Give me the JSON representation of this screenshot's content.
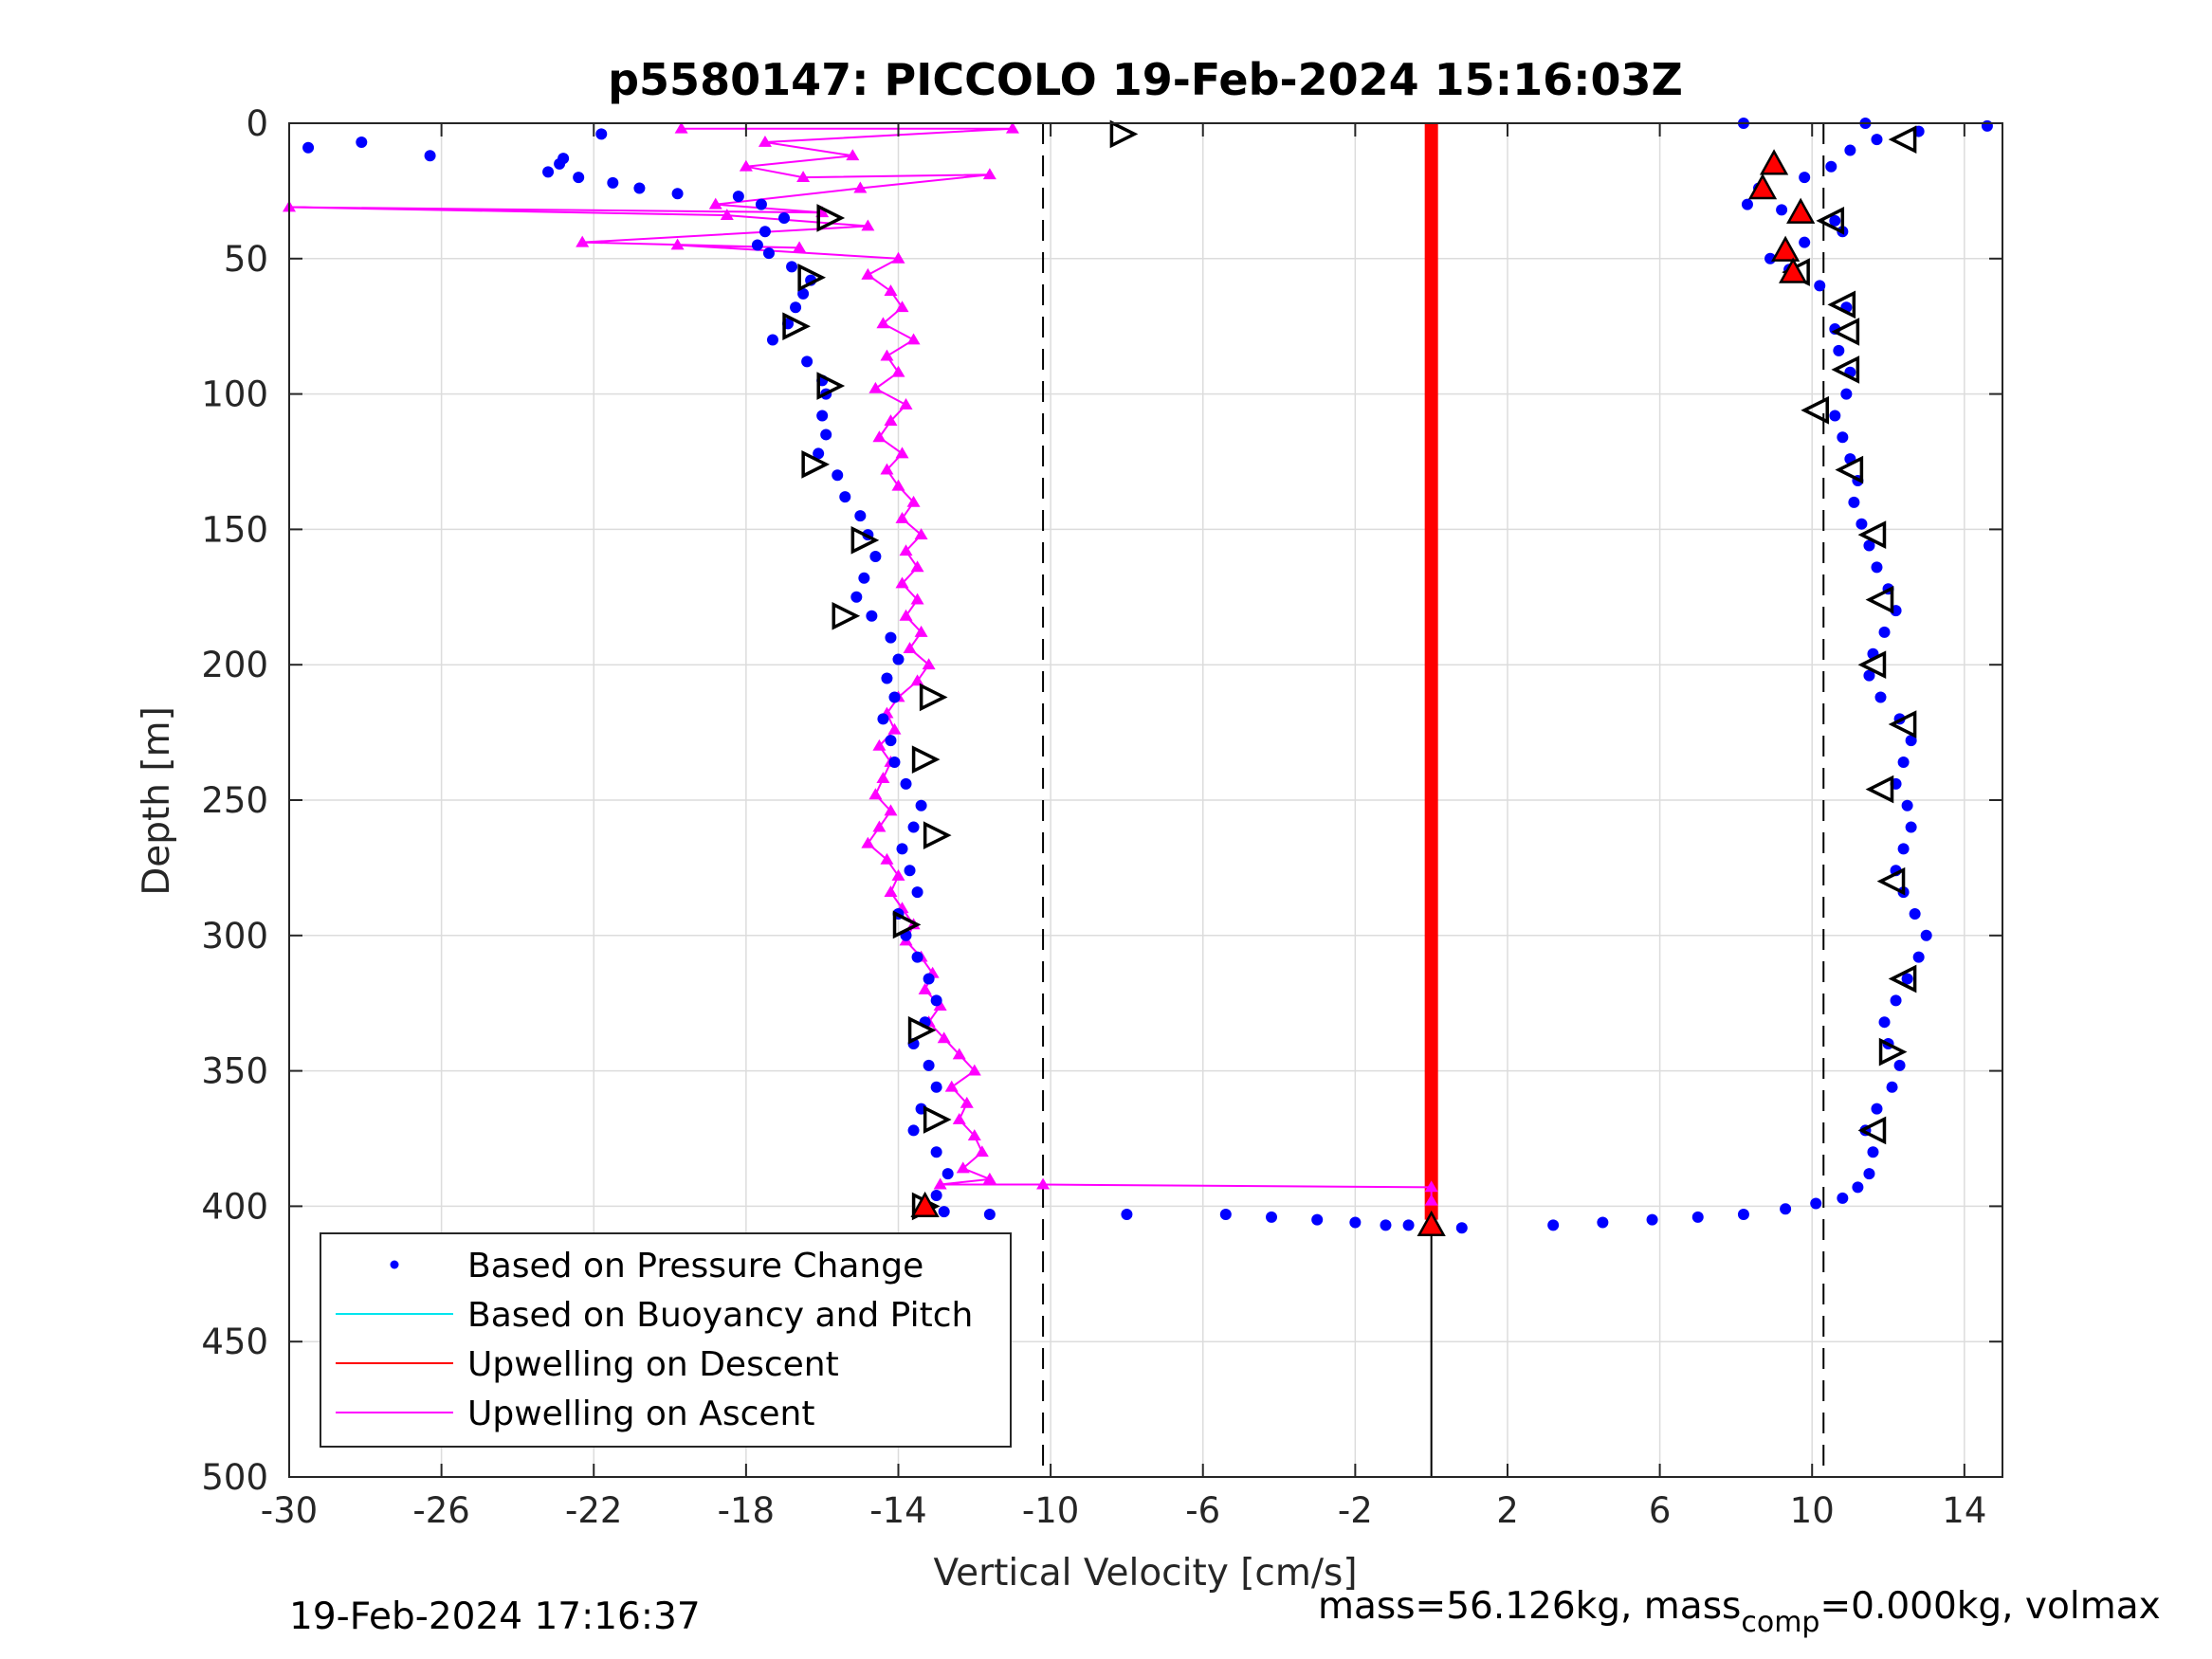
{
  "chart_data": {
    "type": "scatter",
    "title": "p5580147: PICCOLO 19-Feb-2024 15:16:03Z",
    "xlabel": "Vertical Velocity [cm/s]",
    "ylabel": "Depth [m]",
    "xlim": [
      -30,
      15
    ],
    "ylim": [
      0,
      500
    ],
    "y_reversed": true,
    "x_ticks": [
      -30,
      -26,
      -22,
      -18,
      -14,
      -10,
      -6,
      -2,
      2,
      6,
      10,
      14
    ],
    "y_ticks": [
      0,
      50,
      100,
      150,
      200,
      250,
      300,
      350,
      400,
      450,
      500
    ],
    "grid": true,
    "legend_position": "bottom-left",
    "legend": [
      {
        "label": "Based on Pressure Change",
        "color": "#0000ff",
        "marker": "dot"
      },
      {
        "label": "Based on Buoyancy and Pitch",
        "color": "#00e5ee",
        "marker": "line"
      },
      {
        "label": "Upwelling on Descent",
        "color": "#ff0000",
        "marker": "line"
      },
      {
        "label": "Upwelling on Ascent",
        "color": "#ff00ff",
        "marker": "line"
      }
    ],
    "reference_lines": {
      "dashed_x": [
        -10.2,
        10.3
      ],
      "solid_vertical": {
        "x": 0,
        "y_from": 405,
        "y_to": 500
      }
    },
    "series": {
      "pressure_change_descent": [
        [
          -29.5,
          9
        ],
        [
          -28.1,
          7
        ],
        [
          -26.3,
          12
        ],
        [
          -21.8,
          4
        ],
        [
          -22.8,
          13
        ],
        [
          -22.9,
          15
        ],
        [
          -23.2,
          18
        ],
        [
          -22.4,
          20
        ],
        [
          -21.5,
          22
        ],
        [
          -20.8,
          24
        ],
        [
          -19.8,
          26
        ],
        [
          -18.2,
          27
        ],
        [
          -17.6,
          30
        ],
        [
          -17.0,
          35
        ],
        [
          -17.5,
          40
        ],
        [
          -17.7,
          45
        ],
        [
          -17.4,
          48
        ],
        [
          -16.8,
          53
        ],
        [
          -16.3,
          58
        ],
        [
          -16.5,
          63
        ],
        [
          -16.7,
          68
        ],
        [
          -16.9,
          74
        ],
        [
          -17.3,
          80
        ],
        [
          -16.4,
          88
        ],
        [
          -16.0,
          95
        ],
        [
          -15.9,
          100
        ],
        [
          -16.0,
          108
        ],
        [
          -15.9,
          115
        ],
        [
          -16.1,
          122
        ],
        [
          -15.6,
          130
        ],
        [
          -15.4,
          138
        ],
        [
          -15.0,
          145
        ],
        [
          -14.8,
          152
        ],
        [
          -14.6,
          160
        ],
        [
          -14.9,
          168
        ],
        [
          -15.1,
          175
        ],
        [
          -14.7,
          182
        ],
        [
          -14.2,
          190
        ],
        [
          -14.0,
          198
        ],
        [
          -14.3,
          205
        ],
        [
          -14.1,
          212
        ],
        [
          -14.4,
          220
        ],
        [
          -14.2,
          228
        ],
        [
          -14.1,
          236
        ],
        [
          -13.8,
          244
        ],
        [
          -13.4,
          252
        ],
        [
          -13.6,
          260
        ],
        [
          -13.9,
          268
        ],
        [
          -13.7,
          276
        ],
        [
          -13.5,
          284
        ],
        [
          -14.0,
          292
        ],
        [
          -13.8,
          300
        ],
        [
          -13.5,
          308
        ],
        [
          -13.2,
          316
        ],
        [
          -13.0,
          324
        ],
        [
          -13.3,
          332
        ],
        [
          -13.6,
          340
        ],
        [
          -13.2,
          348
        ],
        [
          -13.0,
          356
        ],
        [
          -13.4,
          364
        ],
        [
          -13.6,
          372
        ],
        [
          -13.0,
          380
        ],
        [
          -12.7,
          388
        ],
        [
          -13.0,
          396
        ],
        [
          -12.8,
          402
        ],
        [
          -11.6,
          403
        ],
        [
          -8.0,
          403
        ],
        [
          -5.4,
          403
        ],
        [
          -4.2,
          404
        ],
        [
          -3.0,
          405
        ],
        [
          -2.0,
          406
        ],
        [
          -1.2,
          407
        ],
        [
          -0.6,
          407
        ]
      ],
      "pressure_change_ascent": [
        [
          0.8,
          408
        ],
        [
          3.2,
          407
        ],
        [
          4.5,
          406
        ],
        [
          5.8,
          405
        ],
        [
          7.0,
          404
        ],
        [
          8.2,
          403
        ],
        [
          9.3,
          401
        ],
        [
          10.1,
          399
        ],
        [
          10.8,
          397
        ],
        [
          11.2,
          393
        ],
        [
          11.5,
          388
        ],
        [
          11.6,
          380
        ],
        [
          11.4,
          372
        ],
        [
          11.7,
          364
        ],
        [
          12.1,
          356
        ],
        [
          12.3,
          348
        ],
        [
          12.0,
          340
        ],
        [
          11.9,
          332
        ],
        [
          12.2,
          324
        ],
        [
          12.5,
          316
        ],
        [
          12.8,
          308
        ],
        [
          13.0,
          300
        ],
        [
          12.7,
          292
        ],
        [
          12.4,
          284
        ],
        [
          12.2,
          276
        ],
        [
          12.4,
          268
        ],
        [
          12.6,
          260
        ],
        [
          12.5,
          252
        ],
        [
          12.2,
          244
        ],
        [
          12.4,
          236
        ],
        [
          12.6,
          228
        ],
        [
          12.3,
          220
        ],
        [
          11.8,
          212
        ],
        [
          11.5,
          204
        ],
        [
          11.6,
          196
        ],
        [
          11.9,
          188
        ],
        [
          12.2,
          180
        ],
        [
          12.0,
          172
        ],
        [
          11.7,
          164
        ],
        [
          11.5,
          156
        ],
        [
          11.3,
          148
        ],
        [
          11.1,
          140
        ],
        [
          11.2,
          132
        ],
        [
          11.0,
          124
        ],
        [
          10.8,
          116
        ],
        [
          10.6,
          108
        ],
        [
          10.9,
          100
        ],
        [
          11.0,
          92
        ],
        [
          10.7,
          84
        ],
        [
          10.6,
          76
        ],
        [
          10.9,
          68
        ],
        [
          10.2,
          60
        ],
        [
          9.4,
          54
        ],
        [
          8.9,
          50
        ],
        [
          9.8,
          44
        ],
        [
          10.8,
          40
        ],
        [
          10.6,
          36
        ],
        [
          9.2,
          32
        ],
        [
          8.3,
          30
        ],
        [
          8.6,
          24
        ],
        [
          9.8,
          20
        ],
        [
          10.5,
          16
        ],
        [
          11.0,
          10
        ],
        [
          11.7,
          6
        ],
        [
          12.8,
          3
        ],
        [
          14.6,
          1
        ],
        [
          11.4,
          0
        ],
        [
          8.2,
          0
        ]
      ],
      "buoyancy_pitch_marks": [
        [
          -8.1,
          4
        ],
        [
          12.4,
          6
        ],
        [
          -15.8,
          35
        ],
        [
          10.5,
          36
        ],
        [
          -16.3,
          57
        ],
        [
          9.6,
          55
        ],
        [
          -16.7,
          75
        ],
        [
          10.8,
          67
        ],
        [
          -15.8,
          97
        ],
        [
          10.9,
          77
        ],
        [
          -16.2,
          126
        ],
        [
          10.9,
          91
        ],
        [
          -14.9,
          154
        ],
        [
          10.1,
          106
        ],
        [
          -15.4,
          182
        ],
        [
          11.0,
          128
        ],
        [
          -13.1,
          212
        ],
        [
          11.6,
          152
        ],
        [
          -13.3,
          235
        ],
        [
          11.8,
          176
        ],
        [
          -13.0,
          263
        ],
        [
          11.6,
          200
        ],
        [
          -13.8,
          296
        ],
        [
          12.4,
          222
        ],
        [
          -13.4,
          335
        ],
        [
          11.8,
          246
        ],
        [
          -13.0,
          368
        ],
        [
          12.1,
          280
        ],
        [
          -13.3,
          400
        ],
        [
          12.4,
          316
        ],
        [
          12.1,
          343
        ],
        [
          11.6,
          372
        ]
      ],
      "upwelling_descent": {
        "x": 0,
        "depth_from": 0,
        "depth_to": 405
      },
      "upwelling_descent_triangles": [
        [
          0,
          407
        ],
        [
          9.0,
          15
        ],
        [
          8.7,
          24
        ],
        [
          9.7,
          33
        ],
        [
          9.3,
          47
        ],
        [
          9.5,
          55
        ],
        [
          -13.3,
          400
        ]
      ],
      "upwelling_ascent": [
        [
          -19.7,
          2
        ],
        [
          -11.0,
          2
        ],
        [
          -17.5,
          7
        ],
        [
          -15.2,
          12
        ],
        [
          -18.0,
          16
        ],
        [
          -16.5,
          20
        ],
        [
          -11.6,
          19
        ],
        [
          -15.0,
          24
        ],
        [
          -18.8,
          30
        ],
        [
          -16.0,
          33
        ],
        [
          -30.0,
          31
        ],
        [
          -18.5,
          34
        ],
        [
          -14.8,
          38
        ],
        [
          -22.3,
          44
        ],
        [
          -16.6,
          46
        ],
        [
          -19.8,
          45
        ],
        [
          -14.0,
          50
        ],
        [
          -14.8,
          56
        ],
        [
          -14.2,
          62
        ],
        [
          -13.9,
          68
        ],
        [
          -14.4,
          74
        ],
        [
          -13.6,
          80
        ],
        [
          -14.3,
          86
        ],
        [
          -14.0,
          92
        ],
        [
          -14.6,
          98
        ],
        [
          -13.8,
          104
        ],
        [
          -14.2,
          110
        ],
        [
          -14.5,
          116
        ],
        [
          -13.9,
          122
        ],
        [
          -14.3,
          128
        ],
        [
          -14.0,
          134
        ],
        [
          -13.6,
          140
        ],
        [
          -13.9,
          146
        ],
        [
          -13.4,
          152
        ],
        [
          -13.8,
          158
        ],
        [
          -13.5,
          164
        ],
        [
          -13.9,
          170
        ],
        [
          -13.5,
          176
        ],
        [
          -13.8,
          182
        ],
        [
          -13.4,
          188
        ],
        [
          -13.7,
          194
        ],
        [
          -13.2,
          200
        ],
        [
          -13.5,
          206
        ],
        [
          -14.0,
          212
        ],
        [
          -14.3,
          218
        ],
        [
          -14.1,
          224
        ],
        [
          -14.5,
          230
        ],
        [
          -14.2,
          236
        ],
        [
          -14.4,
          242
        ],
        [
          -14.6,
          248
        ],
        [
          -14.2,
          254
        ],
        [
          -14.5,
          260
        ],
        [
          -14.8,
          266
        ],
        [
          -14.3,
          272
        ],
        [
          -14.0,
          278
        ],
        [
          -14.2,
          284
        ],
        [
          -13.9,
          290
        ],
        [
          -13.6,
          296
        ],
        [
          -13.8,
          302
        ],
        [
          -13.4,
          308
        ],
        [
          -13.1,
          314
        ],
        [
          -13.3,
          320
        ],
        [
          -12.9,
          326
        ],
        [
          -13.2,
          332
        ],
        [
          -12.8,
          338
        ],
        [
          -12.4,
          344
        ],
        [
          -12.0,
          350
        ],
        [
          -12.6,
          356
        ],
        [
          -12.2,
          362
        ],
        [
          -12.4,
          368
        ],
        [
          -12.0,
          374
        ],
        [
          -11.8,
          380
        ],
        [
          -12.3,
          386
        ],
        [
          -11.6,
          390
        ],
        [
          -12.9,
          392
        ],
        [
          -10.2,
          392
        ],
        [
          0,
          393
        ],
        [
          0,
          398
        ]
      ]
    }
  },
  "footer": {
    "timestamp": "19-Feb-2024 17:16:37",
    "mass_text": "mass=56.126kg, mass",
    "mass_sub": "comp",
    "mass_rest": "=0.000kg, volmax"
  }
}
